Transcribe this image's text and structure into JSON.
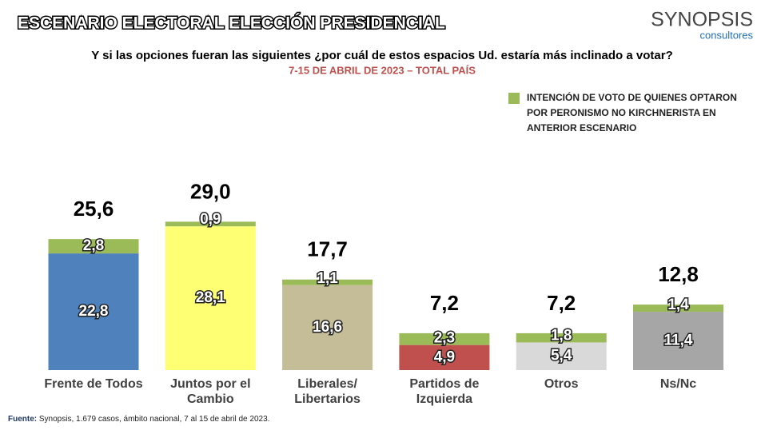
{
  "header": {
    "title": "ESCENARIO ELECTORAL ELECCIÓN PRESIDENCIAL",
    "logo": "SYNOPSIS",
    "logo_sub": "consultores"
  },
  "chart_data": {
    "type": "bar",
    "stacked": true,
    "title": "Y si las opciones fueran las siguientes ¿por cuál de estos espacios Ud. estaría más inclinado a votar?",
    "subtitle": "7-15 DE ABRIL DE 2023 – TOTAL PAÍS",
    "categories": [
      "Frente de Todos",
      "Juntos por el Cambio",
      "Liberales/ Libertarios",
      "Partidos de Izquierda",
      "Otros",
      "Ns/Nc"
    ],
    "series": [
      {
        "colors": [
          "#4f81bd",
          "#ffff73",
          "#c4bd97",
          "#c0504d",
          "#d9d9d9",
          "#a6a6a6"
        ],
        "values": [
          22.8,
          28.1,
          16.6,
          4.9,
          5.4,
          11.4
        ],
        "value_labels": [
          "22,8",
          "28,1",
          "16,6",
          "4,9",
          "5,4",
          "11,4"
        ]
      },
      {
        "name": "INTENCIÓN DE VOTO DE QUIENES OPTARON POR PERONISMO NO KIRCHNERISTA EN ANTERIOR ESCENARIO",
        "color": "#9bbb59",
        "values": [
          2.8,
          0.9,
          1.1,
          2.3,
          1.8,
          1.4
        ],
        "value_labels": [
          "2,8",
          "0,9",
          "1,1",
          "2,3",
          "1,8",
          "1,4"
        ]
      }
    ],
    "total_values": [
      25.6,
      29.0,
      17.7,
      7.2,
      7.2,
      12.8
    ],
    "total_labels": [
      "25,6",
      "29,0",
      "17,7",
      "7,2",
      "7,2",
      "12,8"
    ],
    "legend": "top-right"
  },
  "footer": {
    "label": "Fuente:",
    "text": " Synopsis, 1.679 casos, ámbito nacional, 7 al 15 de abril de 2023."
  }
}
